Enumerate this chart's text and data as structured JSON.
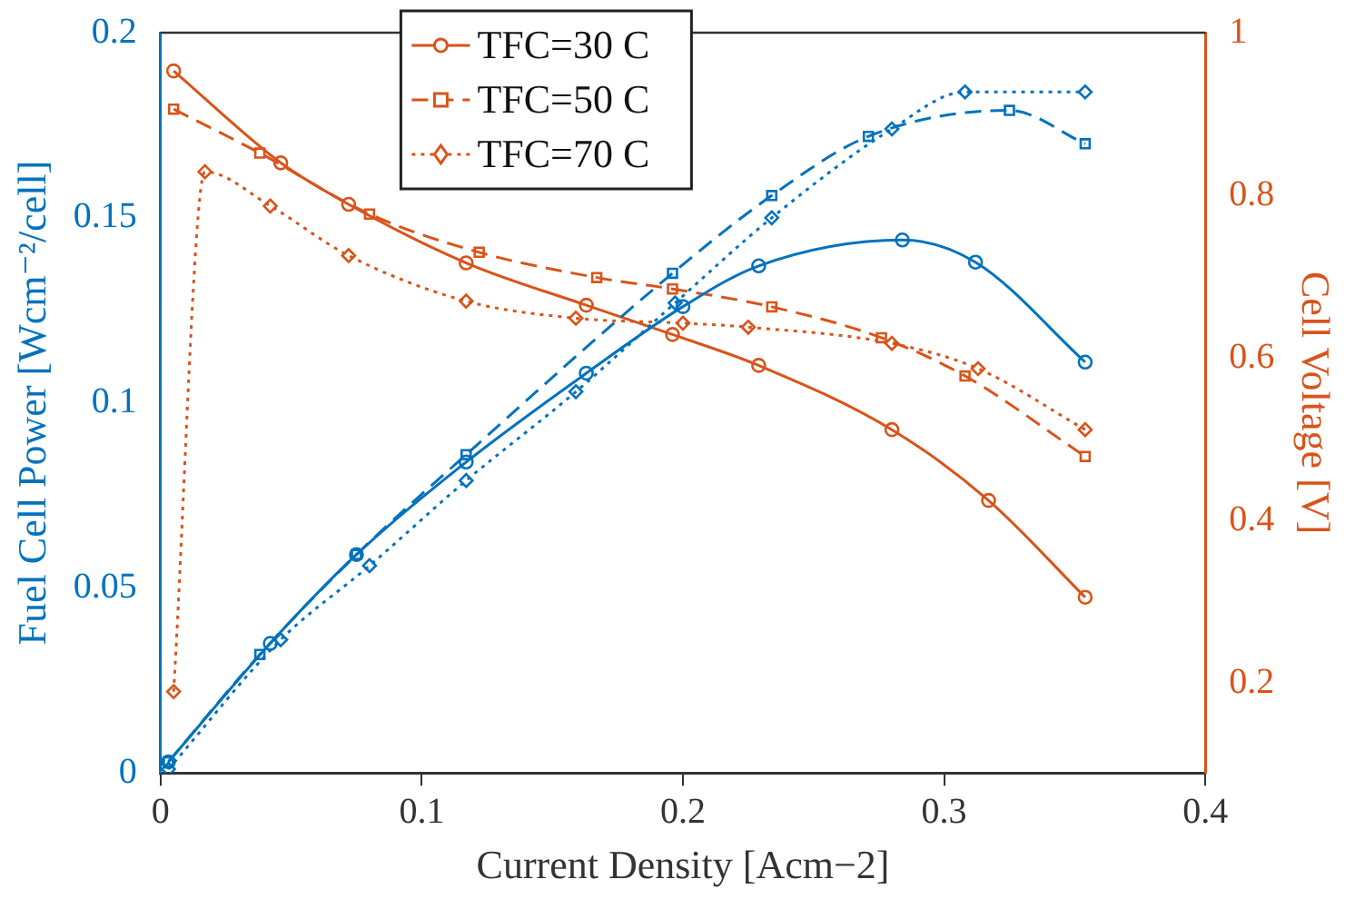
{
  "chart_data": {
    "type": "line",
    "xlabel": "Current Density [Acm−2]",
    "ylabel": "Fuel Cell Power [Wcm⁻²/cell]",
    "y2label": "Cell Voltage [V]",
    "xlim": [
      0,
      0.4
    ],
    "xticks": [
      0,
      0.1,
      0.2,
      0.3,
      0.4
    ],
    "ylim": [
      0,
      0.2
    ],
    "yticks": [
      0,
      0.05,
      0.1,
      0.15,
      0.2
    ],
    "y2lim": [
      0.09,
      1
    ],
    "y2ticks": [
      0.2,
      0.4,
      0.6,
      0.8,
      1
    ],
    "grid": false,
    "legend": "top",
    "series": [
      {
        "color": "#0072bd",
        "marker": "circle",
        "line_style": "solid",
        "x": [
          0.003,
          0.042,
          0.075,
          0.117,
          0.163,
          0.2,
          0.229,
          0.284,
          0.312,
          0.354
        ],
        "values": [
          0.003,
          0.035,
          0.059,
          0.084,
          0.108,
          0.126,
          0.137,
          0.144,
          0.138,
          0.111
        ]
      },
      {
        "color": "#0072bd",
        "marker": "square",
        "line_style": "dashed",
        "x": [
          0.003,
          0.038,
          0.075,
          0.117,
          0.196,
          0.234,
          0.271,
          0.325,
          0.354
        ],
        "values": [
          0.003,
          0.032,
          0.059,
          0.086,
          0.135,
          0.156,
          0.172,
          0.179,
          0.17
        ]
      },
      {
        "color": "#0072bd",
        "marker": "diamond",
        "line_style": "dotted",
        "x": [
          0.003,
          0.046,
          0.08,
          0.117,
          0.159,
          0.197,
          0.234,
          0.28,
          0.308,
          0.354
        ],
        "values": [
          0.001,
          0.036,
          0.056,
          0.079,
          0.103,
          0.127,
          0.15,
          0.174,
          0.184,
          0.184
        ]
      },
      {
        "name": "TFC=30 C",
        "axis": "y2",
        "color": "#d95319",
        "marker": "circle",
        "line_style": "solid",
        "x": [
          0.005,
          0.046,
          0.072,
          0.117,
          0.163,
          0.196,
          0.229,
          0.28,
          0.317,
          0.354
        ],
        "values": [
          0.953,
          0.84,
          0.789,
          0.717,
          0.665,
          0.629,
          0.591,
          0.512,
          0.425,
          0.306
        ]
      },
      {
        "name": "TFC=50 C",
        "axis": "y2",
        "color": "#d95319",
        "marker": "square",
        "line_style": "dashed",
        "x": [
          0.005,
          0.038,
          0.08,
          0.122,
          0.167,
          0.196,
          0.234,
          0.276,
          0.308,
          0.354
        ],
        "values": [
          0.906,
          0.852,
          0.777,
          0.73,
          0.699,
          0.685,
          0.663,
          0.625,
          0.578,
          0.479
        ]
      },
      {
        "name": "TFC=70 C",
        "axis": "y2",
        "color": "#d95319",
        "marker": "diamond",
        "line_style": "dotted",
        "x": [
          0.005,
          0.017,
          0.042,
          0.072,
          0.117,
          0.159,
          0.2,
          0.225,
          0.28,
          0.313,
          0.354
        ],
        "values": [
          0.19,
          0.829,
          0.787,
          0.726,
          0.67,
          0.649,
          0.643,
          0.638,
          0.618,
          0.587,
          0.512
        ]
      }
    ]
  }
}
